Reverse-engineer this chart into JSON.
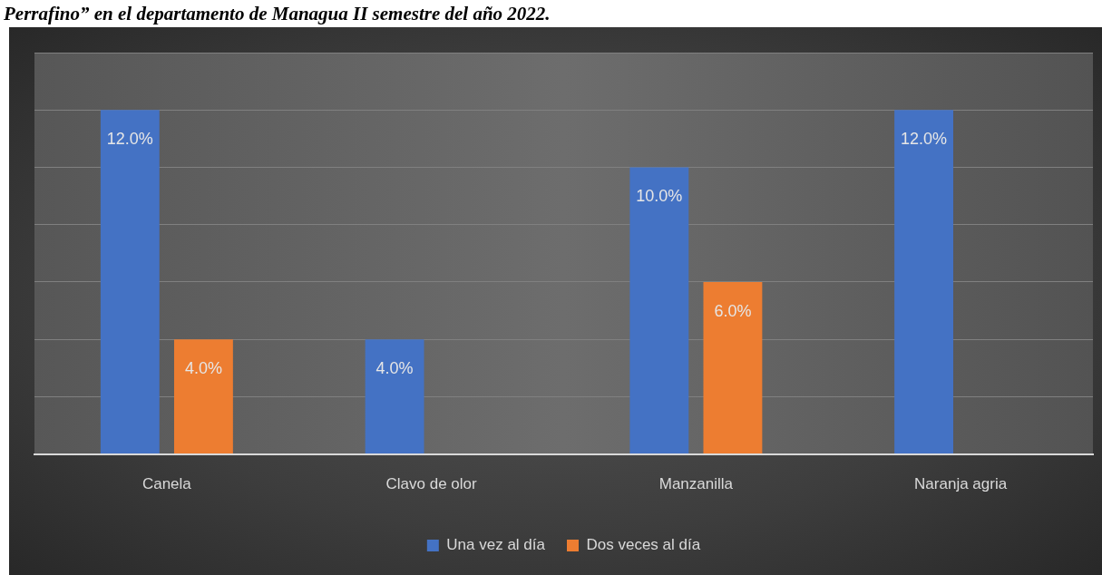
{
  "chart_data": {
    "type": "bar",
    "title": "Perrafino” en el departamento de Managua II semestre del año 2022.",
    "categories": [
      "Canela",
      "Clavo de olor",
      "Manzanilla",
      "Naranja agria"
    ],
    "series": [
      {
        "name": "Una vez al día",
        "color": "#4472c4",
        "values": [
          12,
          4,
          10,
          12
        ],
        "value_labels": [
          "12.0%",
          "4.0%",
          "10.0%",
          "12.0%"
        ]
      },
      {
        "name": "Dos veces al día",
        "color": "#ed7d31",
        "values": [
          4,
          null,
          6,
          null
        ],
        "value_labels": [
          "4.0%",
          null,
          "6.0%",
          null
        ]
      }
    ],
    "ylim": [
      0,
      14
    ],
    "yticks": [
      {
        "value": 0,
        "label": null
      },
      {
        "value": 2,
        "label": null
      },
      {
        "value": 4,
        "label": null
      },
      {
        "value": 6,
        "label": null
      },
      {
        "value": 8,
        "label": null
      },
      {
        "value": 10,
        "label": null
      },
      {
        "value": 12,
        "label": null
      },
      {
        "value": 14,
        "label": null
      }
    ],
    "tick_labels": "x",
    "grid": "y",
    "legend": "bottom"
  }
}
